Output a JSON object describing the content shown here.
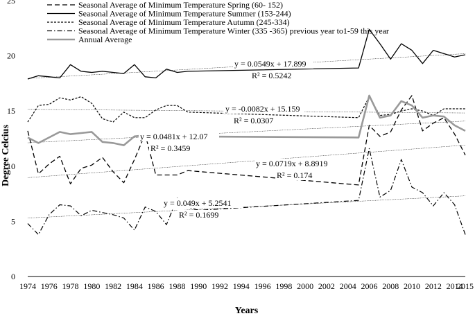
{
  "chart_data": {
    "type": "line",
    "title": "",
    "xlabel": "Years",
    "ylabel": "Degree Celcius",
    "xlim": [
      1974,
      2015
    ],
    "ylim": [
      0,
      25
    ],
    "yticks": [
      0,
      5,
      10,
      15,
      20,
      25
    ],
    "xticks": [
      1974,
      1976,
      1978,
      1980,
      1982,
      1984,
      1986,
      1988,
      1990,
      1992,
      1994,
      1996,
      1998,
      2000,
      2002,
      2004,
      2006,
      2008,
      2010,
      2012,
      2014,
      2015
    ],
    "grid": false,
    "legend_position": "top-left",
    "series": [
      {
        "name": "Seasonal Average of Minimum Temperature Spring (60- 152)",
        "style": "dashed",
        "color": "#000000",
        "points": [
          [
            1974,
            13.2
          ],
          [
            1975,
            9.3
          ],
          [
            1976,
            10.2
          ],
          [
            1977,
            10.9
          ],
          [
            1978,
            8.4
          ],
          [
            1979,
            9.8
          ],
          [
            1980,
            10.1
          ],
          [
            1981,
            10.8
          ],
          [
            1982,
            9.5
          ],
          [
            1983,
            8.5
          ],
          [
            1984,
            10.6
          ],
          [
            1985,
            12.9
          ],
          [
            1986,
            9.2
          ],
          [
            1987,
            9.2
          ],
          [
            1988,
            9.2
          ],
          [
            1989,
            9.6
          ],
          [
            2005,
            8.3
          ],
          [
            2006,
            13.7
          ],
          [
            2007,
            12.7
          ],
          [
            2008,
            13.1
          ],
          [
            2009,
            15.1
          ],
          [
            2010,
            16.4
          ],
          [
            2011,
            13.2
          ],
          [
            2012,
            13.9
          ],
          [
            2013,
            14.4
          ],
          [
            2014,
            12.9
          ],
          [
            2015,
            11.0
          ]
        ]
      },
      {
        "name": "Seasonal Average of Minimum Temperature Summer (153-244)",
        "style": "solid",
        "color": "#000000",
        "points": [
          [
            1974,
            17.9
          ],
          [
            1975,
            18.2
          ],
          [
            1976,
            18.1
          ],
          [
            1977,
            18.0
          ],
          [
            1978,
            19.2
          ],
          [
            1979,
            18.6
          ],
          [
            1980,
            18.5
          ],
          [
            1981,
            18.6
          ],
          [
            1982,
            18.5
          ],
          [
            1983,
            18.4
          ],
          [
            1984,
            19.2
          ],
          [
            1985,
            18.1
          ],
          [
            1986,
            18.0
          ],
          [
            1987,
            18.8
          ],
          [
            1988,
            18.5
          ],
          [
            1989,
            18.6
          ],
          [
            2005,
            18.9
          ],
          [
            2006,
            22.4
          ],
          [
            2007,
            21.1
          ],
          [
            2008,
            19.7
          ],
          [
            2009,
            21.1
          ],
          [
            2010,
            20.5
          ],
          [
            2011,
            19.3
          ],
          [
            2012,
            20.5
          ],
          [
            2013,
            20.2
          ],
          [
            2014,
            19.9
          ],
          [
            2015,
            20.1
          ]
        ]
      },
      {
        "name": "Seasonal Average of Minimum Temperature Autumn (245-334)",
        "style": "dotted",
        "color": "#000000",
        "points": [
          [
            1974,
            14.0
          ],
          [
            1975,
            15.5
          ],
          [
            1976,
            15.6
          ],
          [
            1977,
            16.2
          ],
          [
            1978,
            16.0
          ],
          [
            1979,
            16.3
          ],
          [
            1980,
            15.7
          ],
          [
            1981,
            14.3
          ],
          [
            1982,
            14.0
          ],
          [
            1983,
            14.9
          ],
          [
            1984,
            14.4
          ],
          [
            1985,
            14.4
          ],
          [
            1986,
            15.1
          ],
          [
            1987,
            15.5
          ],
          [
            1988,
            15.5
          ],
          [
            1989,
            14.9
          ],
          [
            2005,
            14.4
          ],
          [
            2006,
            16.3
          ],
          [
            2007,
            14.6
          ],
          [
            2008,
            14.7
          ],
          [
            2009,
            15.0
          ],
          [
            2010,
            15.2
          ],
          [
            2011,
            15.0
          ],
          [
            2012,
            14.6
          ],
          [
            2013,
            15.2
          ],
          [
            2014,
            15.2
          ],
          [
            2015,
            15.2
          ]
        ]
      },
      {
        "name": "Seasonal Average of Minimum Temperature Winter (335 -365) previous year to1-59 this year",
        "style": "dash-dot",
        "color": "#000000",
        "points": [
          [
            1974,
            4.8
          ],
          [
            1975,
            3.8
          ],
          [
            1976,
            5.6
          ],
          [
            1977,
            6.5
          ],
          [
            1978,
            6.4
          ],
          [
            1979,
            5.5
          ],
          [
            1980,
            6.0
          ],
          [
            1981,
            5.8
          ],
          [
            1982,
            5.6
          ],
          [
            1983,
            5.3
          ],
          [
            1984,
            4.2
          ],
          [
            1985,
            6.3
          ],
          [
            1986,
            5.9
          ],
          [
            1987,
            4.7
          ],
          [
            1988,
            7.1
          ],
          [
            1989,
            6.3
          ],
          [
            1990,
            6.0
          ],
          [
            2005,
            6.9
          ],
          [
            2006,
            11.6
          ],
          [
            2007,
            7.2
          ],
          [
            2008,
            7.8
          ],
          [
            2009,
            10.6
          ],
          [
            2010,
            8.1
          ],
          [
            2011,
            7.6
          ],
          [
            2012,
            6.4
          ],
          [
            2013,
            7.6
          ],
          [
            2014,
            6.5
          ],
          [
            2015,
            3.8
          ]
        ]
      },
      {
        "name": "Annual Average",
        "style": "solid-thick",
        "color": "#999999",
        "points": [
          [
            1974,
            12.6
          ],
          [
            1975,
            12.1
          ],
          [
            1976,
            12.6
          ],
          [
            1977,
            13.1
          ],
          [
            1978,
            12.9
          ],
          [
            1979,
            13.0
          ],
          [
            1980,
            13.1
          ],
          [
            1981,
            12.2
          ],
          [
            1982,
            12.1
          ],
          [
            1983,
            11.9
          ],
          [
            1984,
            12.7
          ],
          [
            1985,
            12.8
          ],
          [
            1986,
            12.6
          ],
          [
            1987,
            12.7
          ],
          [
            1988,
            12.7
          ],
          [
            2005,
            12.6
          ],
          [
            2006,
            16.4
          ],
          [
            2007,
            14.4
          ],
          [
            2008,
            14.6
          ],
          [
            2009,
            15.9
          ],
          [
            2010,
            15.5
          ],
          [
            2011,
            14.4
          ],
          [
            2012,
            14.6
          ],
          [
            2013,
            14.5
          ],
          [
            2014,
            13.7
          ],
          [
            2015,
            13.2
          ]
        ]
      }
    ],
    "trendlines": [
      {
        "series": "Summer",
        "equation": "y = 0.0549x + 17.899",
        "r2": "R² = 0.5242",
        "y_start": 17.95,
        "y_end": 20.2
      },
      {
        "series": "Autumn",
        "equation": "y = -0.0082x + 15.159",
        "r2": "R² = 0.0307",
        "y_start": 15.15,
        "y_end": 14.82
      },
      {
        "series": "Annual Average",
        "equation": "y = 0.0481x + 12.07",
        "r2": "R² = 0.3459",
        "y_start": 12.12,
        "y_end": 14.09
      },
      {
        "series": "Spring",
        "equation": "y = 0.0719x + 8.8919",
        "r2": "R² = 0.174",
        "y_start": 8.96,
        "y_end": 11.91
      },
      {
        "series": "Winter",
        "equation": "y = 0.049x + 5.2541",
        "r2": "R² = 0.1699",
        "y_start": 5.3,
        "y_end": 7.31
      }
    ]
  }
}
